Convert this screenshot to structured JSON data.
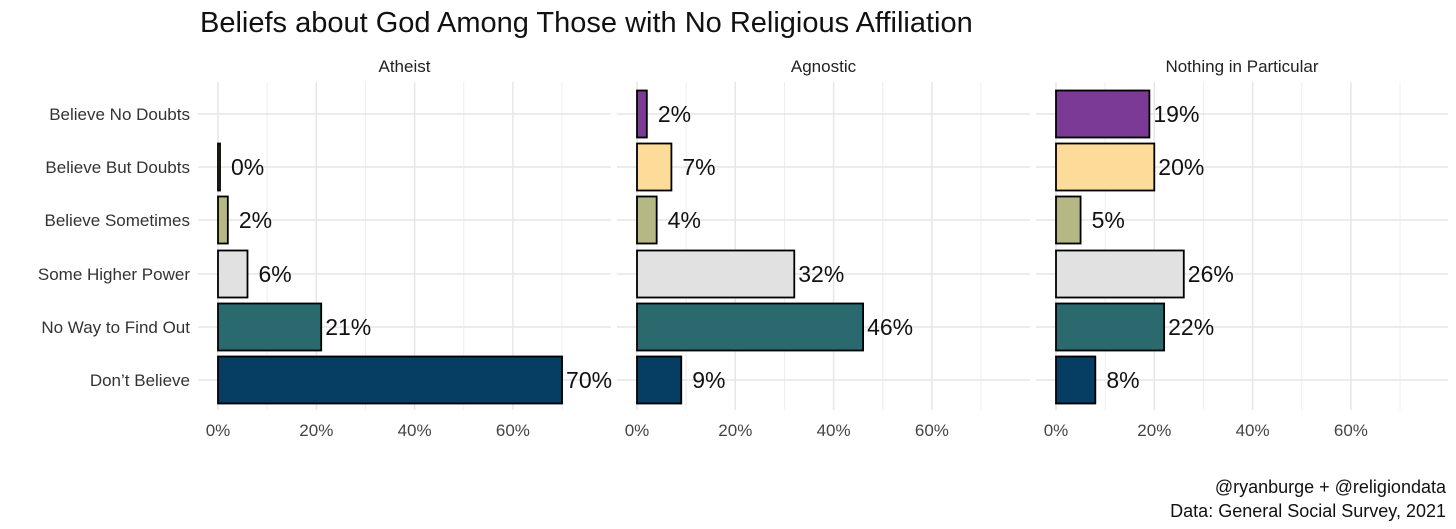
{
  "chart_data": {
    "type": "bar",
    "orientation": "horizontal",
    "title": "Beliefs about God Among Those with No Religious Affiliation",
    "categories": [
      "Believe No Doubts",
      "Believe But Doubts",
      "Believe Sometimes",
      "Some Higher Power",
      "No Way to Find Out",
      "Don't Believe"
    ],
    "category_labels": [
      "Believe No Doubts",
      "Believe But Doubts",
      "Believe Sometimes",
      "Some Higher Power",
      "No Way to Find Out",
      "Don’t Believe"
    ],
    "category_colors": [
      "#7b3a96",
      "#fddc99",
      "#b5b884",
      "#e1e1e1",
      "#2a6a6e",
      "#063d62"
    ],
    "xlim": [
      0,
      0.75
    ],
    "xticks": [
      0,
      0.2,
      0.4,
      0.6
    ],
    "xtick_labels": [
      "0%",
      "20%",
      "40%",
      "60%"
    ],
    "grid": true,
    "facets": [
      {
        "name": "Atheist",
        "values": [
          null,
          0.004,
          0.02,
          0.06,
          0.21,
          0.7
        ],
        "labels": [
          "",
          "0%",
          "2%",
          "6%",
          "21%",
          "70%"
        ]
      },
      {
        "name": "Agnostic",
        "values": [
          0.02,
          0.07,
          0.04,
          0.32,
          0.46,
          0.09
        ],
        "labels": [
          "2%",
          "7%",
          "4%",
          "32%",
          "46%",
          "9%"
        ]
      },
      {
        "name": "Nothing in Particular",
        "values": [
          0.19,
          0.2,
          0.05,
          0.26,
          0.22,
          0.08
        ],
        "labels": [
          "19%",
          "20%",
          "5%",
          "26%",
          "22%",
          "8%"
        ]
      }
    ],
    "caption": [
      "@ryanburge + @religiondata",
      "Data: General Social Survey, 2021"
    ]
  }
}
